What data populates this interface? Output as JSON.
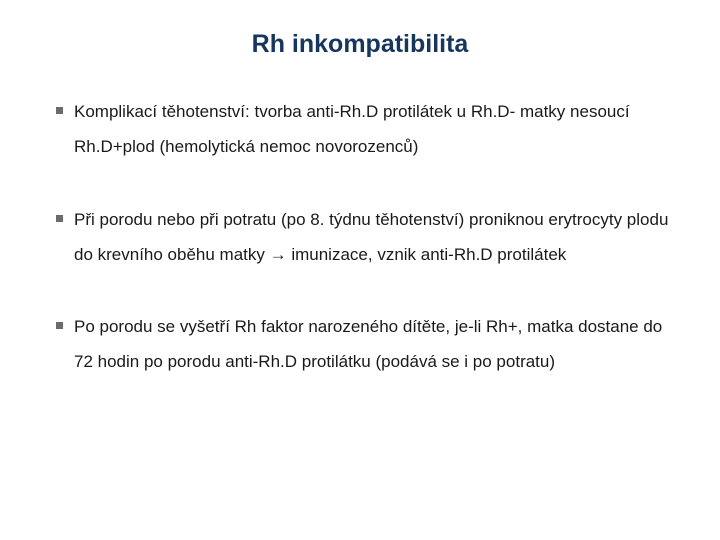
{
  "slide": {
    "title_text": "Rh inkompatibilita",
    "title_color": "#17365d",
    "body_color": "#1a1a1a",
    "bullet_marker_color": "#6b6b6b",
    "background_color": "#ffffff",
    "title_fontsize": 25,
    "body_fontsize": 17,
    "bullets": [
      "Komplikací těhotenství: tvorba anti-Rh.D protilátek u Rh.D- matky nesoucí Rh.D+plod (hemolytická nemoc novorozenců)",
      "Při porodu nebo při potratu (po 8. týdnu těhotenství) proniknou erytrocyty plodu do krevního oběhu matky → imunizace, vznik anti-Rh.D protilátek",
      "Po porodu se vyšetří Rh faktor narozeného dítěte, je-li Rh+, matka dostane do 72 hodin po porodu anti-Rh.D protilátku (podává se i po potratu)"
    ]
  }
}
